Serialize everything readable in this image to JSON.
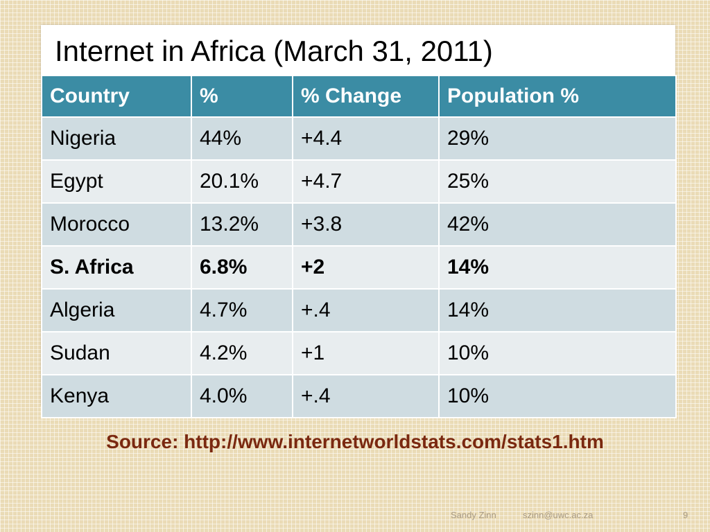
{
  "slide": {
    "title": "Internet in Africa (March 31, 2011)"
  },
  "table": {
    "headers": [
      "Country",
      "%",
      "% Change",
      "Population %"
    ],
    "rows": [
      [
        "Nigeria",
        "44%",
        "+4.4",
        "29%"
      ],
      [
        "Egypt",
        "20.1%",
        "+4.7",
        "25%"
      ],
      [
        "Morocco",
        "13.2%",
        "+3.8",
        "42%"
      ],
      [
        "S. Africa",
        "6.8%",
        "+2",
        "14%"
      ],
      [
        "Algeria",
        "4.7%",
        "+.4",
        "14%"
      ],
      [
        "Sudan",
        "4.2%",
        "+1",
        "10%"
      ],
      [
        "Kenya",
        "4.0%",
        "+.4",
        "10%"
      ]
    ],
    "highlighted_row": "S. Africa"
  },
  "source": "Source: http://www.internetworldstats.com/stats1.htm",
  "footer": {
    "author": "Sandy Zinn",
    "email": "szinn@uwc.ac.za",
    "page_number": "9"
  },
  "colors": {
    "header_bg": "#3b8ca4",
    "row_odd_bg": "#cfdce1",
    "row_even_bg": "#e8edef",
    "source_text": "#7a2810",
    "background": "#eadbb6"
  }
}
